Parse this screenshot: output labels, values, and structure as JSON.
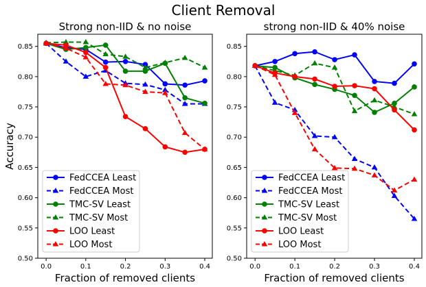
{
  "suptitle": "Client Removal",
  "chart_data": [
    {
      "type": "line",
      "title": "Strong non-IID & no noise",
      "xlabel": "Fraction of removed clients",
      "ylabel": "Accuracy",
      "xlim": [
        -0.021,
        0.419
      ],
      "ylim": [
        0.5,
        0.87
      ],
      "xticks": [
        "0.0",
        "0.1",
        "0.2",
        "0.3",
        "0.4"
      ],
      "yticks": [
        "0.50",
        "0.55",
        "0.60",
        "0.65",
        "0.70",
        "0.75",
        "0.80",
        "0.85"
      ],
      "x": [
        0,
        0.05,
        0.1,
        0.15,
        0.2,
        0.25,
        0.3,
        0.35,
        0.4
      ],
      "legend": "lower-left",
      "series": [
        {
          "name": "FedCCEA Least",
          "color": "#0000ff",
          "dash": false,
          "marker": "circle",
          "values": [
            0.855,
            0.848,
            0.845,
            0.824,
            0.825,
            0.82,
            0.788,
            0.786,
            0.793
          ]
        },
        {
          "name": "FedCCEA Most",
          "color": "#0000ff",
          "dash": true,
          "marker": "triangle",
          "values": [
            0.855,
            0.825,
            0.8,
            0.81,
            0.789,
            0.787,
            0.778,
            0.755,
            0.755
          ]
        },
        {
          "name": "TMC-SV Least",
          "color": "#008000",
          "dash": false,
          "marker": "circle",
          "values": [
            0.855,
            0.845,
            0.848,
            0.852,
            0.809,
            0.809,
            0.822,
            0.765,
            0.756
          ]
        },
        {
          "name": "TMC-SV Most",
          "color": "#008000",
          "dash": true,
          "marker": "triangle",
          "values": [
            0.856,
            0.857,
            0.857,
            0.837,
            0.833,
            0.815,
            0.823,
            0.831,
            0.815
          ]
        },
        {
          "name": "LOO Least",
          "color": "#ff0000",
          "dash": false,
          "marker": "circle",
          "values": [
            0.855,
            0.852,
            0.84,
            0.815,
            0.734,
            0.714,
            0.684,
            0.675,
            0.68
          ]
        },
        {
          "name": "LOO Most",
          "color": "#ff0000",
          "dash": true,
          "marker": "triangle",
          "values": [
            0.855,
            0.847,
            0.832,
            0.788,
            0.786,
            0.775,
            0.773,
            0.707,
            0.68
          ]
        }
      ]
    },
    {
      "type": "line",
      "title": "strong non-IID & 40% noise",
      "xlabel": "Fraction of removed clients",
      "ylabel": "",
      "xlim": [
        -0.021,
        0.419
      ],
      "ylim": [
        0.5,
        0.87
      ],
      "xticks": [
        "0.0",
        "0.1",
        "0.2",
        "0.3",
        "0.4"
      ],
      "yticks": [
        "0.50",
        "0.55",
        "0.60",
        "0.65",
        "0.70",
        "0.75",
        "0.80",
        "0.85"
      ],
      "x": [
        0,
        0.05,
        0.1,
        0.15,
        0.2,
        0.25,
        0.3,
        0.35,
        0.4
      ],
      "legend": "lower-left",
      "series": [
        {
          "name": "FedCCEA Least",
          "color": "#0000ff",
          "dash": false,
          "marker": "circle",
          "values": [
            0.818,
            0.825,
            0.838,
            0.841,
            0.828,
            0.836,
            0.792,
            0.789,
            0.821
          ]
        },
        {
          "name": "FedCCEA Most",
          "color": "#0000ff",
          "dash": true,
          "marker": "triangle",
          "values": [
            0.818,
            0.757,
            0.745,
            0.702,
            0.7,
            0.664,
            0.65,
            0.603,
            0.565
          ]
        },
        {
          "name": "TMC-SV Least",
          "color": "#008000",
          "dash": false,
          "marker": "circle",
          "values": [
            0.818,
            0.815,
            0.798,
            0.787,
            0.779,
            0.769,
            0.741,
            0.756,
            0.783
          ]
        },
        {
          "name": "TMC-SV Most",
          "color": "#008000",
          "dash": true,
          "marker": "triangle",
          "values": [
            0.818,
            0.81,
            0.802,
            0.822,
            0.815,
            0.743,
            0.761,
            0.75,
            0.738
          ]
        },
        {
          "name": "LOO Least",
          "color": "#ff0000",
          "dash": false,
          "marker": "circle",
          "values": [
            0.818,
            0.806,
            0.8,
            0.796,
            0.784,
            0.785,
            0.78,
            0.745,
            0.712
          ]
        },
        {
          "name": "LOO Most",
          "color": "#ff0000",
          "dash": true,
          "marker": "triangle",
          "values": [
            0.818,
            0.803,
            0.74,
            0.68,
            0.649,
            0.648,
            0.637,
            0.612,
            0.63
          ]
        }
      ]
    }
  ]
}
